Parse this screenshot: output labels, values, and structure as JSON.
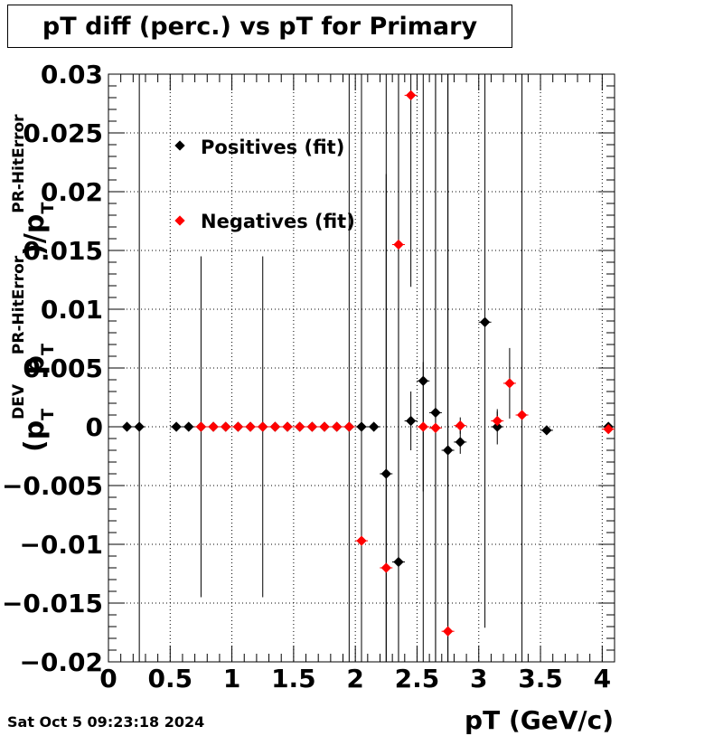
{
  "title": "pT diff (perc.) vs pT for Primary",
  "timestamp": "Sat Oct  5 09:23:18 2024",
  "chart_data": {
    "type": "scatter",
    "title": "pT diff (perc.) vs pT for Primary",
    "xlabel": "pT (GeV/c)",
    "ylabel": {
      "main": "(p",
      "sub1": "T",
      "sup1": "DEV",
      "mid": " p",
      "sub2": "T",
      "sup2": "PR-HitError",
      "tail": ")/p",
      "sub3": "T",
      "sup3": "PR-HitError"
    },
    "xlim": [
      0,
      4.1
    ],
    "ylim": [
      -0.02,
      0.03
    ],
    "x_ticks": [
      0,
      0.5,
      1,
      1.5,
      2,
      2.5,
      3,
      3.5,
      4
    ],
    "x_tick_labels": [
      "0",
      "0.5",
      "1",
      "1.5",
      "2",
      "2.5",
      "3",
      "3.5",
      "4"
    ],
    "y_ticks": [
      -0.02,
      -0.015,
      -0.01,
      -0.005,
      0,
      0.005,
      0.01,
      0.015,
      0.02,
      0.025,
      0.03
    ],
    "y_tick_labels": [
      "−0.02",
      "−0.015",
      "−0.01",
      "−0.005",
      "0",
      "0.005",
      "0.01",
      "0.015",
      "0.02",
      "0.025",
      "0.03"
    ],
    "grid": true,
    "legend_position": "top-left",
    "series": [
      {
        "name": "Positives (fit)",
        "color": "#000000",
        "points": [
          {
            "x": 0.15,
            "y": 0.0,
            "err": 0.0001
          },
          {
            "x": 0.25,
            "y": 0.0,
            "err": 0.05
          },
          {
            "x": 0.55,
            "y": 0.0,
            "err": 0.0001
          },
          {
            "x": 0.65,
            "y": 0.0,
            "err": 0.0001
          },
          {
            "x": 0.75,
            "y": 0.0,
            "err": 0.0145
          },
          {
            "x": 0.85,
            "y": 0.0,
            "err": 0.0001
          },
          {
            "x": 0.95,
            "y": 0.0,
            "err": 0.0001
          },
          {
            "x": 1.05,
            "y": 0.0,
            "err": 0.0001
          },
          {
            "x": 1.15,
            "y": 0.0,
            "err": 0.0001
          },
          {
            "x": 1.25,
            "y": 0.0,
            "err": 0.0145
          },
          {
            "x": 1.35,
            "y": 0.0,
            "err": 0.0001
          },
          {
            "x": 1.45,
            "y": 0.0,
            "err": 0.0001
          },
          {
            "x": 1.55,
            "y": 0.0,
            "err": 0.0001
          },
          {
            "x": 1.65,
            "y": 0.0,
            "err": 0.0001
          },
          {
            "x": 1.75,
            "y": 0.0,
            "err": 0.0001
          },
          {
            "x": 1.85,
            "y": 0.0,
            "err": 0.0001
          },
          {
            "x": 1.95,
            "y": 0.0,
            "err": 0.0001
          },
          {
            "x": 2.05,
            "y": 0.0,
            "err": 0.0001
          },
          {
            "x": 2.15,
            "y": 0.0,
            "err": 0.0001
          },
          {
            "x": 2.25,
            "y": -0.004,
            "err": 0.0255
          },
          {
            "x": 2.35,
            "y": -0.0115,
            "err": 0.05
          },
          {
            "x": 2.45,
            "y": 0.0005,
            "err": 0.0025
          },
          {
            "x": 2.55,
            "y": 0.0039,
            "err": 0.05
          },
          {
            "x": 2.65,
            "y": 0.0012,
            "err": 0.05
          },
          {
            "x": 2.75,
            "y": -0.002,
            "err": 0.05
          },
          {
            "x": 2.85,
            "y": -0.0013,
            "err": 0.001
          },
          {
            "x": 3.05,
            "y": 0.0089,
            "err": 0.026
          },
          {
            "x": 3.15,
            "y": 0.0,
            "err": 0.0015
          },
          {
            "x": 3.55,
            "y": -0.0003,
            "err": 0.0001
          },
          {
            "x": 4.05,
            "y": 0.0,
            "err": 0.0002
          }
        ]
      },
      {
        "name": "Negatives (fit)",
        "color": "#ff0000",
        "points": [
          {
            "x": 0.75,
            "y": 0.0,
            "err": 0.0001
          },
          {
            "x": 0.85,
            "y": 0.0,
            "err": 0.0001
          },
          {
            "x": 0.95,
            "y": 0.0,
            "err": 0.0001
          },
          {
            "x": 1.05,
            "y": 0.0,
            "err": 0.0001
          },
          {
            "x": 1.15,
            "y": 0.0,
            "err": 0.0001
          },
          {
            "x": 1.25,
            "y": 0.0,
            "err": 0.0001
          },
          {
            "x": 1.35,
            "y": 0.0,
            "err": 0.0001
          },
          {
            "x": 1.45,
            "y": 0.0,
            "err": 0.0001
          },
          {
            "x": 1.55,
            "y": 0.0,
            "err": 0.0001
          },
          {
            "x": 1.65,
            "y": 0.0,
            "err": 0.0001
          },
          {
            "x": 1.75,
            "y": 0.0,
            "err": 0.0001
          },
          {
            "x": 1.85,
            "y": 0.0,
            "err": 0.0001
          },
          {
            "x": 1.95,
            "y": 0.0,
            "err": 0.05
          },
          {
            "x": 2.05,
            "y": -0.0097,
            "err": 0.05
          },
          {
            "x": 2.25,
            "y": -0.012,
            "err": 0.05
          },
          {
            "x": 2.35,
            "y": 0.0155,
            "err": 0.05
          },
          {
            "x": 2.45,
            "y": 0.0282,
            "err": 0.0163
          },
          {
            "x": 2.55,
            "y": 0.0,
            "err": 0.0055
          },
          {
            "x": 2.65,
            "y": -0.0001,
            "err": 0.05
          },
          {
            "x": 2.75,
            "y": -0.0174,
            "err": 0.05
          },
          {
            "x": 2.85,
            "y": 0.0001,
            "err": 0.0007
          },
          {
            "x": 3.15,
            "y": 0.0005,
            "err": 0.0008
          },
          {
            "x": 3.25,
            "y": 0.0037,
            "err": 0.003
          },
          {
            "x": 3.35,
            "y": 0.001,
            "err": 0.05
          },
          {
            "x": 4.05,
            "y": -0.0002,
            "err": 0.0002
          }
        ]
      }
    ]
  }
}
